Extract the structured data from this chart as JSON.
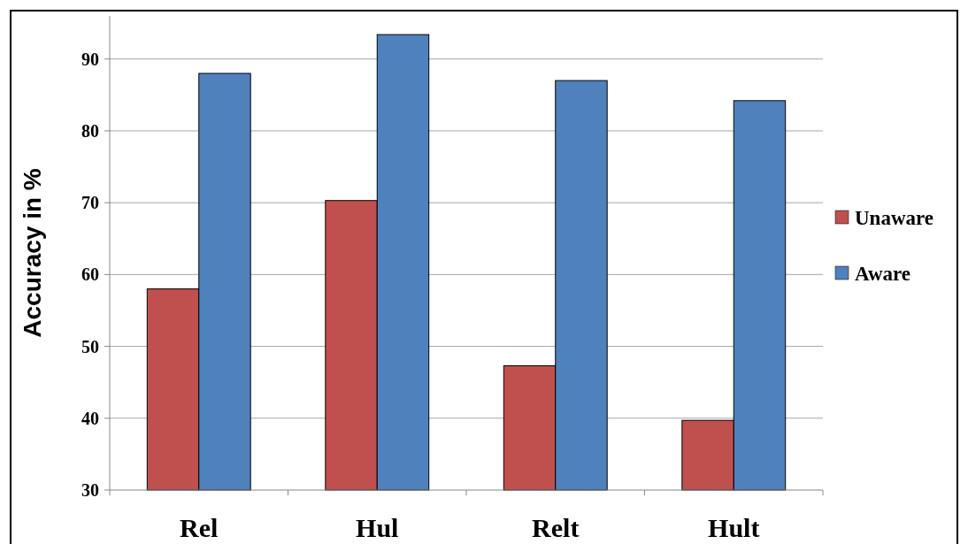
{
  "chart_data": {
    "type": "bar",
    "ylabel": "Accuracy in %",
    "categories": [
      "Rel",
      "Hul",
      "Relt",
      "Hult"
    ],
    "series": [
      {
        "name": "Unaware",
        "color": "#c0504d",
        "values": [
          58,
          70.3,
          47.3,
          39.7
        ]
      },
      {
        "name": "Aware",
        "color": "#4f81bd",
        "values": [
          88,
          93.4,
          87,
          84.2
        ]
      }
    ],
    "ylim": [
      30,
      96
    ],
    "yticks": [
      30,
      40,
      50,
      60,
      70,
      80,
      90
    ],
    "grid": "y",
    "legend": "right"
  }
}
